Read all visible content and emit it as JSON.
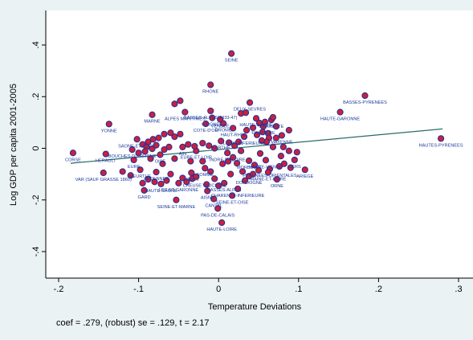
{
  "chart_data": {
    "type": "scatter",
    "title": "",
    "xlabel": "Temperature Deviations",
    "ylabel": "Log GDP per capita 2001-2005",
    "xlim": [
      -0.2,
      0.3
    ],
    "ylim": [
      -0.5,
      0.5
    ],
    "xticks": [
      -0.2,
      -0.1,
      0,
      0.1,
      0.2,
      0.3
    ],
    "xtick_labels": [
      "-.2",
      "-.1",
      "0",
      ".1",
      ".2",
      ".3"
    ],
    "yticks": [
      -0.4,
      -0.2,
      0,
      0.2,
      0.4
    ],
    "ytick_labels": [
      "-.4",
      "-.2",
      "0",
      ".2",
      ".4"
    ],
    "grid": false,
    "marker_fill": "#cc1f3a",
    "marker_edge": "#1f2f9a",
    "fit_color": "#2a6a6a",
    "label_color": "#1a3a9a",
    "fit_line": {
      "slope": 0.279,
      "x": [
        -0.185,
        0.28
      ],
      "y": [
        -0.058,
        0.075
      ]
    },
    "note": "coef = .279, (robust) se = .129, t = 2.17",
    "points": [
      {
        "label": "SEINE",
        "x": 0.016,
        "y": 0.367
      },
      {
        "label": "RHONE",
        "x": -0.01,
        "y": 0.246
      },
      {
        "label": "BASSES-PYRENEES",
        "x": 0.183,
        "y": 0.204
      },
      {
        "label": "DEUX-SEVRES",
        "x": 0.039,
        "y": 0.177
      },
      {
        "label": "ALPES MARITIMES",
        "x": -0.042,
        "y": 0.14
      },
      {
        "label": "BASSES-ALPES(1933-47)",
        "x": -0.01,
        "y": 0.145
      },
      {
        "label": "MARNE",
        "x": -0.083,
        "y": 0.13
      },
      {
        "label": "GIRONDE",
        "x": -0.008,
        "y": 0.118
      },
      {
        "label": "VENDEE",
        "x": 0.002,
        "y": 0.112
      },
      {
        "label": "HAUTE-GARONNE",
        "x": 0.152,
        "y": 0.14
      },
      {
        "label": "HAUTE-SAVOIE",
        "x": 0.047,
        "y": 0.116
      },
      {
        "label": "CHARENTE",
        "x": 0.066,
        "y": 0.11
      },
      {
        "label": "COTE-D'OR",
        "x": -0.016,
        "y": 0.095
      },
      {
        "label": "DROME",
        "x": 0.006,
        "y": 0.096
      },
      {
        "label": "HAUT-RHIN",
        "x": 0.018,
        "y": 0.078
      },
      {
        "label": "FINISTERE",
        "x": 0.056,
        "y": 0.085
      },
      {
        "label": "YONNE",
        "x": -0.137,
        "y": 0.094
      },
      {
        "label": "LOIRE-INFERIEURE",
        "x": 0.032,
        "y": 0.045
      },
      {
        "label": "MAYENNE",
        "x": 0.079,
        "y": 0.05
      },
      {
        "label": "SAONE-ET-LOIRE",
        "x": -0.102,
        "y": 0.035
      },
      {
        "label": "SARTHE",
        "x": 0.003,
        "y": 0.028
      },
      {
        "label": "HAUTES-PYRENEES",
        "x": 0.278,
        "y": 0.038
      },
      {
        "label": "CORSE",
        "x": -0.182,
        "y": -0.018
      },
      {
        "label": "HERAULT",
        "x": -0.141,
        "y": -0.022
      },
      {
        "label": "BOUCHES-DU-RHONE",
        "x": -0.108,
        "y": -0.005
      },
      {
        "label": "AIN",
        "x": -0.045,
        "y": 0.005
      },
      {
        "label": "EURE-ET-LOIR",
        "x": -0.028,
        "y": -0.01
      },
      {
        "label": "INDRE-ET-LOIRE",
        "x": 0.011,
        "y": -0.018
      },
      {
        "label": "MORBIHAN",
        "x": 0.038,
        "y": -0.048
      },
      {
        "label": "HAUTE-VIENNE",
        "x": 0.059,
        "y": -0.046
      },
      {
        "label": "OISE",
        "x": -0.073,
        "y": -0.025
      },
      {
        "label": "EURE",
        "x": -0.106,
        "y": -0.045
      },
      {
        "label": "GERS",
        "x": 0.095,
        "y": -0.045
      },
      {
        "label": "PYRENEES-ORIENTALES",
        "x": 0.064,
        "y": -0.08
      },
      {
        "label": "MEURTHE",
        "x": -0.098,
        "y": -0.083
      },
      {
        "label": "ARDENNES",
        "x": -0.078,
        "y": -0.092
      },
      {
        "label": "LOIRET",
        "x": -0.034,
        "y": -0.095
      },
      {
        "label": "SOMME",
        "x": -0.017,
        "y": -0.077
      },
      {
        "label": "MAINE-ET-LOIRE",
        "x": 0.062,
        "y": -0.093
      },
      {
        "label": "ARIEGE",
        "x": 0.108,
        "y": -0.083
      },
      {
        "label": "DORDOGNE",
        "x": 0.038,
        "y": -0.108
      },
      {
        "label": "ORNE",
        "x": 0.073,
        "y": -0.12
      },
      {
        "label": "CREUSE",
        "x": -0.033,
        "y": -0.118
      },
      {
        "label": "VAUCLUSE",
        "x": -0.005,
        "y": -0.118
      },
      {
        "label": "VAR (SAUF GRASSE 1860)",
        "x": -0.144,
        "y": -0.095
      },
      {
        "label": "LOT-ET-GARONNE",
        "x": -0.05,
        "y": -0.135
      },
      {
        "label": "HAUTE-SAONE",
        "x": -0.072,
        "y": -0.138
      },
      {
        "label": "BASSES-ALPES",
        "x": 0.007,
        "y": -0.135
      },
      {
        "label": "CHARENTE-INFERIEURE",
        "x": 0.024,
        "y": -0.157
      },
      {
        "label": "GARD",
        "x": -0.093,
        "y": -0.163
      },
      {
        "label": "AISNE",
        "x": -0.014,
        "y": -0.165
      },
      {
        "label": "SEINE-ET-OISE",
        "x": 0.017,
        "y": -0.183
      },
      {
        "label": "CANTAL",
        "x": -0.006,
        "y": -0.196
      },
      {
        "label": "SEINE-ET-MARNE",
        "x": -0.053,
        "y": -0.2
      },
      {
        "label": "PAS-DE-CALAIS",
        "x": -0.001,
        "y": -0.233
      },
      {
        "label": "HAUTE-LOIRE",
        "x": 0.004,
        "y": -0.288
      },
      {
        "label": "",
        "x": -0.048,
        "y": 0.184
      },
      {
        "label": "",
        "x": -0.055,
        "y": 0.172
      },
      {
        "label": "",
        "x": 0.028,
        "y": 0.135
      },
      {
        "label": "",
        "x": 0.034,
        "y": 0.138
      },
      {
        "label": "",
        "x": 0.051,
        "y": 0.098
      },
      {
        "label": "",
        "x": 0.058,
        "y": 0.102
      },
      {
        "label": "",
        "x": 0.068,
        "y": 0.12
      },
      {
        "label": "",
        "x": 0.088,
        "y": 0.07
      },
      {
        "label": "",
        "x": 0.072,
        "y": 0.085
      },
      {
        "label": "",
        "x": 0.035,
        "y": 0.07
      },
      {
        "label": "",
        "x": 0.043,
        "y": 0.08
      },
      {
        "label": "",
        "x": 0.055,
        "y": 0.063
      },
      {
        "label": "",
        "x": 0.062,
        "y": 0.058
      },
      {
        "label": "",
        "x": 0.048,
        "y": 0.052
      },
      {
        "label": "",
        "x": 0.063,
        "y": 0.04
      },
      {
        "label": "",
        "x": 0.072,
        "y": 0.04
      },
      {
        "label": "",
        "x": 0.06,
        "y": 0.025
      },
      {
        "label": "",
        "x": 0.054,
        "y": 0.03
      },
      {
        "label": "",
        "x": 0.068,
        "y": 0.005
      },
      {
        "label": "",
        "x": 0.081,
        "y": 0.005
      },
      {
        "label": "",
        "x": 0.088,
        "y": -0.01
      },
      {
        "label": "",
        "x": 0.098,
        "y": -0.015
      },
      {
        "label": "",
        "x": 0.078,
        "y": -0.03
      },
      {
        "label": "",
        "x": 0.082,
        "y": -0.06
      },
      {
        "label": "",
        "x": 0.076,
        "y": -0.07
      },
      {
        "label": "",
        "x": 0.09,
        "y": -0.075
      },
      {
        "label": "",
        "x": 0.045,
        "y": -0.065
      },
      {
        "label": "",
        "x": 0.052,
        "y": -0.02
      },
      {
        "label": "",
        "x": 0.028,
        "y": -0.01
      },
      {
        "label": "",
        "x": 0.023,
        "y": -0.058
      },
      {
        "label": "",
        "x": 0.018,
        "y": -0.035
      },
      {
        "label": "",
        "x": 0.005,
        "y": -0.06
      },
      {
        "label": "",
        "x": 0.012,
        "y": -0.05
      },
      {
        "label": "",
        "x": 0.02,
        "y": 0.01
      },
      {
        "label": "",
        "x": 0.025,
        "y": 0.025
      },
      {
        "label": "",
        "x": -0.005,
        "y": 0.0
      },
      {
        "label": "",
        "x": -0.012,
        "y": 0.01
      },
      {
        "label": "",
        "x": -0.02,
        "y": 0.02
      },
      {
        "label": "",
        "x": 0.013,
        "y": 0.022
      },
      {
        "label": "",
        "x": -0.03,
        "y": 0.008
      },
      {
        "label": "",
        "x": -0.038,
        "y": 0.015
      },
      {
        "label": "",
        "x": -0.048,
        "y": 0.055
      },
      {
        "label": "",
        "x": -0.055,
        "y": 0.045
      },
      {
        "label": "",
        "x": -0.06,
        "y": 0.06
      },
      {
        "label": "",
        "x": -0.068,
        "y": 0.055
      },
      {
        "label": "",
        "x": -0.075,
        "y": 0.04
      },
      {
        "label": "",
        "x": -0.082,
        "y": 0.035
      },
      {
        "label": "",
        "x": -0.088,
        "y": 0.025
      },
      {
        "label": "",
        "x": -0.095,
        "y": 0.015
      },
      {
        "label": "",
        "x": -0.09,
        "y": 0.005
      },
      {
        "label": "",
        "x": -0.083,
        "y": -0.002
      },
      {
        "label": "",
        "x": -0.078,
        "y": 0.012
      },
      {
        "label": "",
        "x": -0.068,
        "y": -0.005
      },
      {
        "label": "",
        "x": -0.062,
        "y": 0.005
      },
      {
        "label": "",
        "x": -0.092,
        "y": -0.012
      },
      {
        "label": "",
        "x": -0.1,
        "y": -0.018
      },
      {
        "label": "",
        "x": -0.085,
        "y": -0.04
      },
      {
        "label": "",
        "x": -0.07,
        "y": -0.06
      },
      {
        "label": "",
        "x": -0.055,
        "y": -0.04
      },
      {
        "label": "",
        "x": -0.035,
        "y": -0.05
      },
      {
        "label": "",
        "x": -0.02,
        "y": -0.05
      },
      {
        "label": "",
        "x": -0.01,
        "y": -0.09
      },
      {
        "label": "",
        "x": -0.028,
        "y": -0.11
      },
      {
        "label": "",
        "x": -0.045,
        "y": -0.115
      },
      {
        "label": "",
        "x": -0.06,
        "y": -0.1
      },
      {
        "label": "",
        "x": -0.088,
        "y": -0.12
      },
      {
        "label": "",
        "x": -0.11,
        "y": -0.105
      },
      {
        "label": "",
        "x": -0.12,
        "y": -0.09
      },
      {
        "label": "",
        "x": -0.095,
        "y": -0.135
      },
      {
        "label": "",
        "x": -0.08,
        "y": -0.13
      },
      {
        "label": "",
        "x": -0.065,
        "y": -0.125
      },
      {
        "label": "",
        "x": -0.04,
        "y": -0.13
      },
      {
        "label": "",
        "x": 0.015,
        "y": -0.1
      },
      {
        "label": "",
        "x": 0.03,
        "y": -0.09
      },
      {
        "label": "",
        "x": 0.043,
        "y": -0.1
      },
      {
        "label": "",
        "x": 0.05,
        "y": -0.085
      },
      {
        "label": "",
        "x": 0.033,
        "y": -0.125
      },
      {
        "label": "",
        "x": 0.0,
        "y": -0.145
      },
      {
        "label": "",
        "x": -0.015,
        "y": -0.14
      }
    ]
  }
}
